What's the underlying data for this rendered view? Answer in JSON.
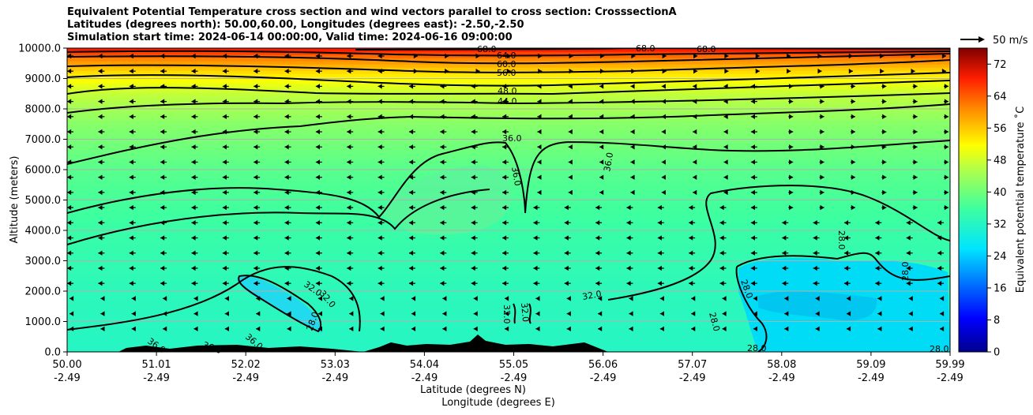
{
  "title_lines": [
    "Equivalent Potential Temperature cross section and wind vectors parallel to cross section: CrosssectionA",
    "Latitudes (degrees north): 50.00,60.00, Longitudes (degrees east): -2.50,-2.50",
    "Simulation start time: 2024-06-14 00:00:00, Valid time: 2024-06-16 09:00:00"
  ],
  "chart_data": {
    "type": "heatmap",
    "title": "Equivalent Potential Temperature cross section and wind vectors parallel to cross section: CrosssectionA",
    "xlabel": "Latitude (degrees N)",
    "xlabel2": "Longitude (degrees E)",
    "ylabel": "Altitude (meters)",
    "ylim": [
      0,
      10000
    ],
    "yticks": [
      "0.0",
      "1000.0",
      "2000.0",
      "3000.0",
      "4000.0",
      "5000.0",
      "6000.0",
      "7000.0",
      "8000.0",
      "9000.0",
      "10000.0"
    ],
    "xticks": [
      {
        "lat": "50.00",
        "lon": "-2.49"
      },
      {
        "lat": "51.01",
        "lon": "-2.49"
      },
      {
        "lat": "52.02",
        "lon": "-2.49"
      },
      {
        "lat": "53.03",
        "lon": "-2.49"
      },
      {
        "lat": "54.04",
        "lon": "-2.49"
      },
      {
        "lat": "55.05",
        "lon": "-2.49"
      },
      {
        "lat": "56.06",
        "lon": "-2.49"
      },
      {
        "lat": "57.07",
        "lon": "-2.49"
      },
      {
        "lat": "58.08",
        "lon": "-2.49"
      },
      {
        "lat": "59.09",
        "lon": "-2.49"
      },
      {
        "lat": "59.99",
        "lon": "-2.49"
      }
    ],
    "grid": "horizontal",
    "colorbar": {
      "label": "Equivalent potential temperature ˚C",
      "min": 0,
      "max": 76,
      "ticks": [
        "0",
        "8",
        "16",
        "24",
        "32",
        "40",
        "48",
        "56",
        "64",
        "72"
      ]
    },
    "quiver_key": "50 m/s",
    "contour_labels": [
      "68.0",
      "64.0",
      "60.0",
      "56.0",
      "48.0",
      "44.0",
      "36.0",
      "32.0",
      "28.0"
    ],
    "theta_profile": [
      {
        "alt": 0,
        "theta": 32
      },
      {
        "alt": 2000,
        "theta": 33
      },
      {
        "alt": 4000,
        "theta": 35
      },
      {
        "alt": 6000,
        "theta": 38
      },
      {
        "alt": 7500,
        "theta": 42
      },
      {
        "alt": 8500,
        "theta": 47
      },
      {
        "alt": 9200,
        "theta": 54
      },
      {
        "alt": 9700,
        "theta": 62
      },
      {
        "alt": 10000,
        "theta": 70
      }
    ]
  },
  "colors": {
    "terrain": "#000000",
    "contour": "#000000",
    "grid": "#b0b0b0"
  }
}
